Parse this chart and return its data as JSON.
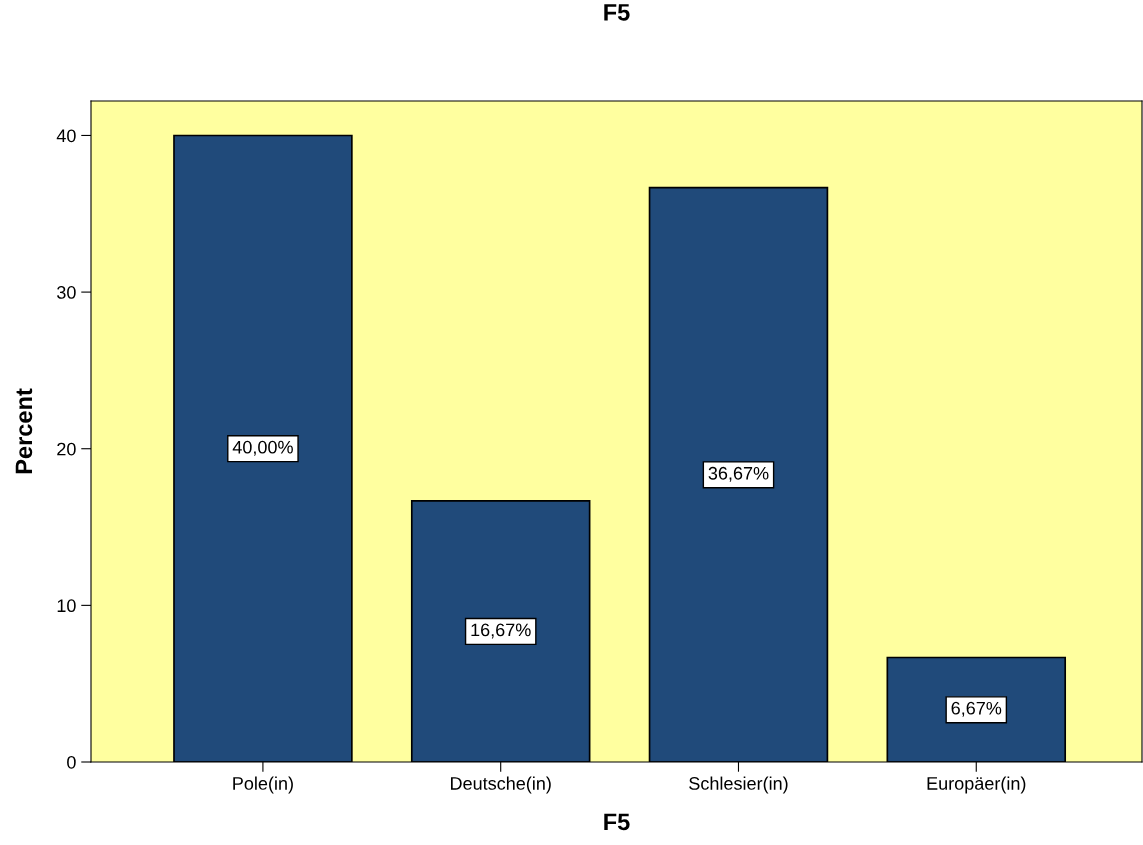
{
  "chart_data": {
    "type": "bar",
    "title": "F5",
    "xlabel": "F5",
    "ylabel": "Percent",
    "categories": [
      "Pole(in)",
      "Deutsche(in)",
      "Schlesier(in)",
      "Europäer(in)"
    ],
    "values": [
      40,
      16.67,
      36.67,
      6.67
    ],
    "value_labels": [
      "40,00%",
      "16,67%",
      "36,67%",
      "6,67%"
    ],
    "color": "#204a7a",
    "ylim": [
      0,
      42.2
    ],
    "yticks": [
      0,
      10,
      20,
      30,
      40
    ],
    "grid": false
  }
}
